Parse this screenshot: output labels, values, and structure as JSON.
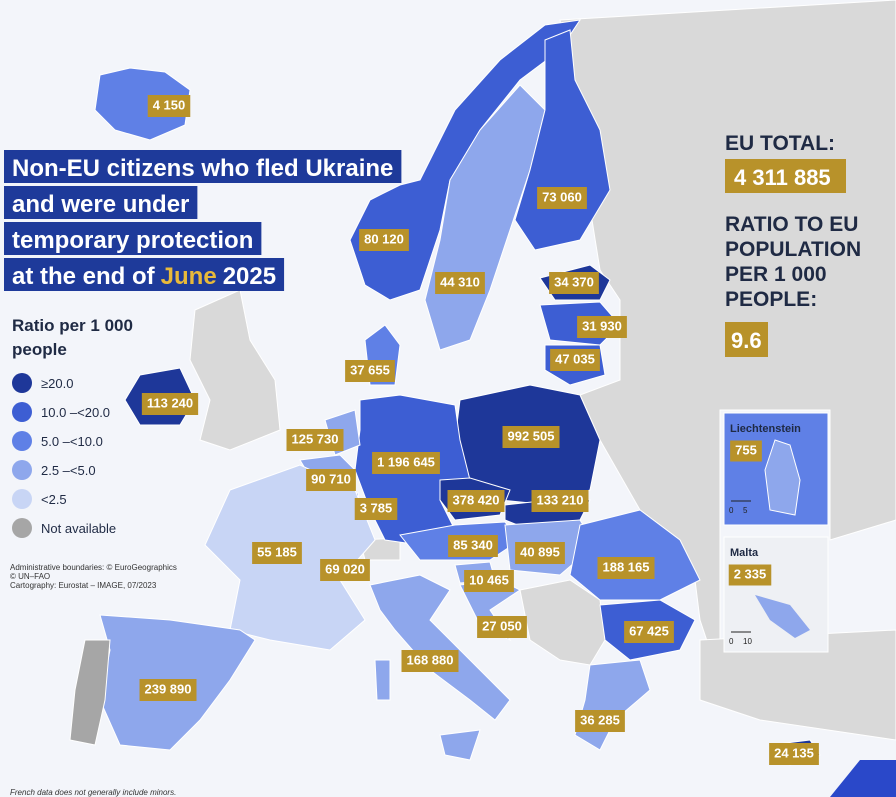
{
  "title": {
    "lines": [
      "Non-EU citizens who fled Ukraine",
      "and were under",
      "temporary protection",
      "at the end of"
    ],
    "month": "June",
    "year": "2025"
  },
  "legend": {
    "title": [
      "Ratio per 1 000",
      "people"
    ],
    "items": [
      {
        "label": "≥20.0",
        "color": "#1e3799"
      },
      {
        "label": "10.0 –<20.0",
        "color": "#3d5ed3"
      },
      {
        "label": "5.0 –<10.0",
        "color": "#5f80e6"
      },
      {
        "label": "2.5 –<5.0",
        "color": "#8ea7ec"
      },
      {
        "label": "<2.5",
        "color": "#c8d5f5"
      },
      {
        "label": "Not available",
        "color": "#a6a6a6"
      }
    ]
  },
  "credits": [
    "Administrative boundaries: © EuroGeographics",
    "© UN–FAO",
    "Cartography: Eurostat – IMAGE, 07/2023"
  ],
  "footnote": "French data does not generally include minors.",
  "eu_total": {
    "label": "EU TOTAL:",
    "value": "4 311 885",
    "ratio_label": [
      "RATIO TO EU",
      "POPULATION",
      "PER 1 000",
      "PEOPLE:"
    ],
    "ratio": "9.6"
  },
  "labels": [
    "4 150",
    "80 120",
    "73 060",
    "44 310",
    "34 370",
    "31 930",
    "47 035",
    "37 655",
    "113 240",
    "992 505",
    "125 730",
    "1 196 645",
    "90 710",
    "378 420",
    "133 210",
    "3 785",
    "85 340",
    "40 895",
    "188 165",
    "55 185",
    "69 020",
    "10 465",
    "27 050",
    "67 425",
    "168 880",
    "239 890",
    "36 285",
    "24 135"
  ],
  "insets": [
    {
      "name": "Liechtenstein",
      "value": "755",
      "scale": [
        "0",
        "5"
      ]
    },
    {
      "name": "Malta",
      "value": "2 335",
      "scale": [
        "0",
        "10"
      ]
    }
  ]
}
